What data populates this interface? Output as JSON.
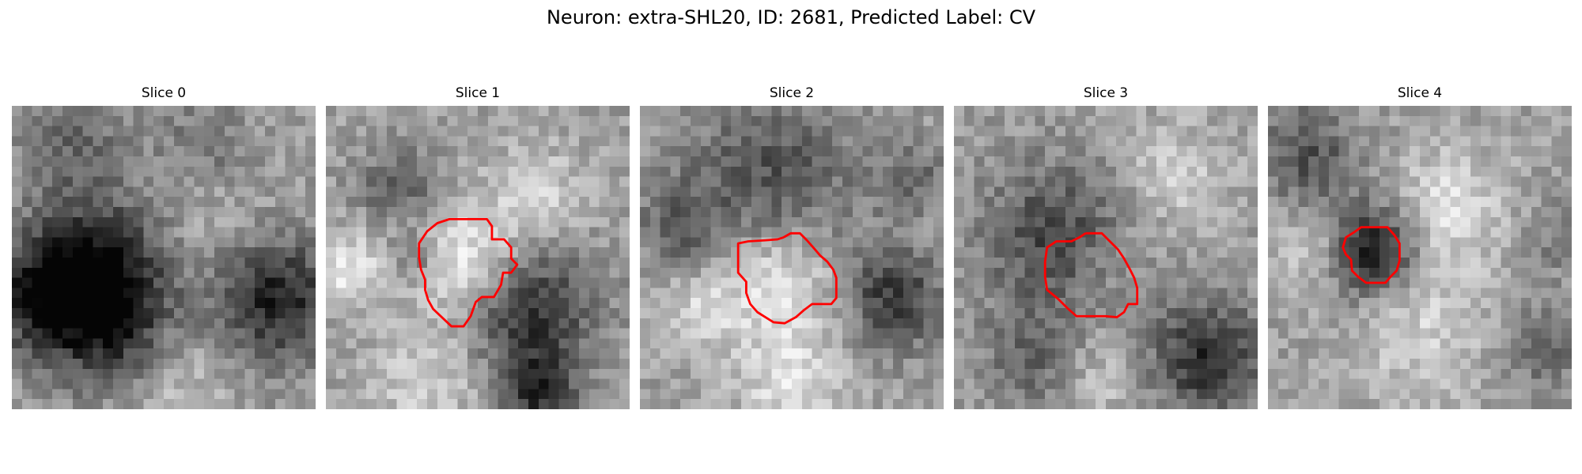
{
  "title": "Neuron: extra-SHL20, ID: 2681, Predicted Label: CV",
  "contour_color": "#ff0000",
  "slices": [
    {
      "label": "Slice 0",
      "has_contour": false,
      "contour": []
    },
    {
      "label": "Slice 1",
      "has_contour": true,
      "contour": [
        [
          13.7,
          11.2
        ],
        [
          15.9,
          11.2
        ],
        [
          16.4,
          11.9
        ],
        [
          16.4,
          13.2
        ],
        [
          17.6,
          13.2
        ],
        [
          18.3,
          14.0
        ],
        [
          18.3,
          15.1
        ],
        [
          18.9,
          15.7
        ],
        [
          18.3,
          16.5
        ],
        [
          17.5,
          16.5
        ],
        [
          17.3,
          17.7
        ],
        [
          16.6,
          18.9
        ],
        [
          15.4,
          18.9
        ],
        [
          14.8,
          19.4
        ],
        [
          14.3,
          20.8
        ],
        [
          13.6,
          21.8
        ],
        [
          12.4,
          21.8
        ],
        [
          10.6,
          20.1
        ],
        [
          10.1,
          19.2
        ],
        [
          9.8,
          18.2
        ],
        [
          9.8,
          17.2
        ],
        [
          9.4,
          16.2
        ],
        [
          9.2,
          15.0
        ],
        [
          9.2,
          13.6
        ],
        [
          10.0,
          12.4
        ],
        [
          11.0,
          11.6
        ],
        [
          12.2,
          11.2
        ],
        [
          13.7,
          11.2
        ]
      ]
    },
    {
      "label": "Slice 2",
      "has_contour": true,
      "contour": [
        [
          14.2,
          13.0
        ],
        [
          14.9,
          12.6
        ],
        [
          15.8,
          12.6
        ],
        [
          16.5,
          13.3
        ],
        [
          17.2,
          14.1
        ],
        [
          17.8,
          14.8
        ],
        [
          18.5,
          15.4
        ],
        [
          19.1,
          16.2
        ],
        [
          19.4,
          17.0
        ],
        [
          19.4,
          19.0
        ],
        [
          18.9,
          19.6
        ],
        [
          17.0,
          19.6
        ],
        [
          16.2,
          20.2
        ],
        [
          15.4,
          20.9
        ],
        [
          14.3,
          21.5
        ],
        [
          13.2,
          21.4
        ],
        [
          12.4,
          20.9
        ],
        [
          11.6,
          20.4
        ],
        [
          10.9,
          19.6
        ],
        [
          10.5,
          18.5
        ],
        [
          10.5,
          17.4
        ],
        [
          9.7,
          16.5
        ],
        [
          9.7,
          14.8
        ],
        [
          9.7,
          13.6
        ],
        [
          10.7,
          13.4
        ],
        [
          12.3,
          13.3
        ],
        [
          13.6,
          13.2
        ],
        [
          14.2,
          13.0
        ]
      ]
    },
    {
      "label": "Slice 3",
      "has_contour": true,
      "contour": [
        [
          13.0,
          12.6
        ],
        [
          14.6,
          12.6
        ],
        [
          15.4,
          13.4
        ],
        [
          16.2,
          14.2
        ],
        [
          16.8,
          15.1
        ],
        [
          17.4,
          16.2
        ],
        [
          17.8,
          17.0
        ],
        [
          18.1,
          18.0
        ],
        [
          18.1,
          19.6
        ],
        [
          17.2,
          19.6
        ],
        [
          16.8,
          20.4
        ],
        [
          16.1,
          20.9
        ],
        [
          15.0,
          20.8
        ],
        [
          13.6,
          20.8
        ],
        [
          12.1,
          20.8
        ],
        [
          11.2,
          20.0
        ],
        [
          10.3,
          19.1
        ],
        [
          9.2,
          18.2
        ],
        [
          9.0,
          16.9
        ],
        [
          9.0,
          15.4
        ],
        [
          9.2,
          14.0
        ],
        [
          10.1,
          13.4
        ],
        [
          11.6,
          13.4
        ],
        [
          12.4,
          13.0
        ],
        [
          13.0,
          12.6
        ]
      ]
    },
    {
      "label": "Slice 4",
      "has_contour": true,
      "contour": [
        [
          10.7,
          12.0
        ],
        [
          11.8,
          12.0
        ],
        [
          12.5,
          12.8
        ],
        [
          13.0,
          13.6
        ],
        [
          13.0,
          15.3
        ],
        [
          12.7,
          16.3
        ],
        [
          12.1,
          16.9
        ],
        [
          11.6,
          17.5
        ],
        [
          9.7,
          17.5
        ],
        [
          8.9,
          16.9
        ],
        [
          8.3,
          16.3
        ],
        [
          8.2,
          15.2
        ],
        [
          7.7,
          14.7
        ],
        [
          7.4,
          14.0
        ],
        [
          7.7,
          13.0
        ],
        [
          8.5,
          12.5
        ],
        [
          9.2,
          12.0
        ],
        [
          10.7,
          12.0
        ]
      ]
    }
  ]
}
